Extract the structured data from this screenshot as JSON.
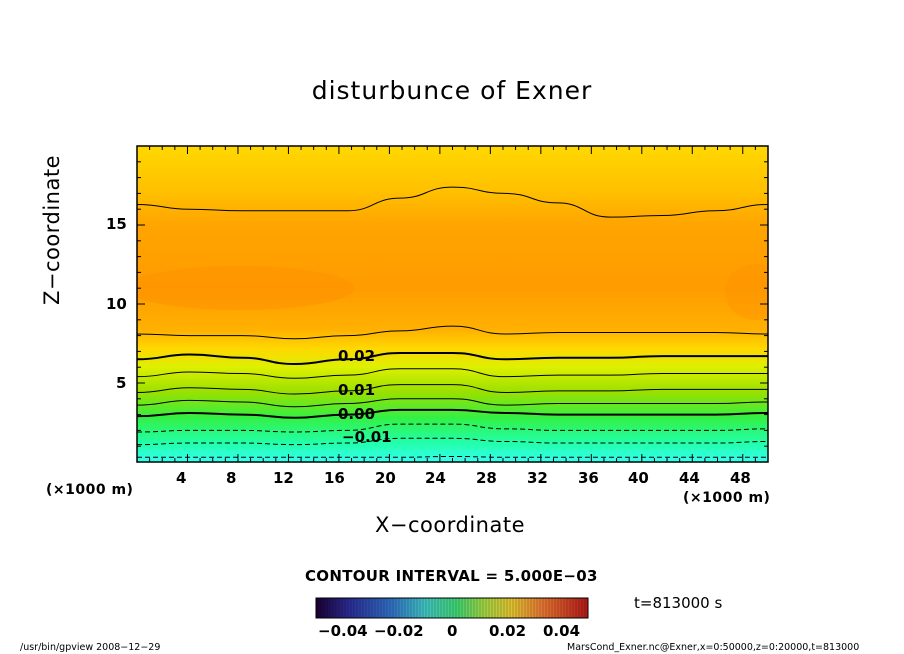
{
  "title": "disturbunce of Exner",
  "xlabel": "X−coordinate",
  "ylabel": "Z−coordinate",
  "x_unit": "(×1000 m)",
  "y_unit": "(×1000 m)",
  "contour_interval_text": "CONTOUR INTERVAL = 5.000E−03",
  "time_text": "t=813000 s",
  "footer_left": "/usr/bin/gpview   2008−12−29",
  "footer_right": "MarsCond_Exner.nc@Exner,x=0:50000,z=0:20000,t=813000",
  "chart_data": {
    "type": "heatmap",
    "title": "disturbunce of Exner",
    "xlabel": "X−coordinate",
    "ylabel": "Z−coordinate",
    "x_unit": "(×1000 m)",
    "y_unit": "(×1000 m)",
    "xlim": [
      0,
      50
    ],
    "ylim": [
      0,
      20
    ],
    "x_ticks": [
      "4",
      "8",
      "12",
      "16",
      "20",
      "24",
      "28",
      "32",
      "36",
      "40",
      "44",
      "48"
    ],
    "y_ticks": [
      "5",
      "10",
      "15"
    ],
    "contour_interval": 0.005,
    "contour_labels": [
      "0.02",
      "0.01",
      "0.00",
      "−0.01"
    ],
    "colorbar": {
      "min": -0.05,
      "max": 0.05,
      "ticks": [
        "−0.04",
        "−0.02",
        "0",
        "0.02",
        "0.04"
      ]
    },
    "contour_levels": [
      {
        "value": -0.015,
        "style": "dashed",
        "z": [
          0.3,
          0.3,
          0.3,
          0.3,
          0.3,
          0.3,
          0.35,
          0.3,
          0.3,
          0.3,
          0.3,
          0.3,
          0.3
        ]
      },
      {
        "value": -0.01,
        "style": "dashed",
        "z": [
          1.1,
          1.2,
          1.2,
          1.1,
          1.2,
          1.5,
          1.5,
          1.3,
          1.2,
          1.2,
          1.2,
          1.2,
          1.3
        ]
      },
      {
        "value": -0.005,
        "style": "dashed",
        "z": [
          1.9,
          2.0,
          2.0,
          1.9,
          2.0,
          2.4,
          2.4,
          2.1,
          2.0,
          2.0,
          2.0,
          2.0,
          2.1
        ]
      },
      {
        "value": 0.0,
        "style": "bold",
        "z": [
          2.9,
          3.1,
          3.0,
          2.8,
          3.0,
          3.3,
          3.3,
          3.1,
          3.0,
          3.0,
          3.0,
          3.0,
          3.1
        ]
      },
      {
        "value": 0.005,
        "style": "solid",
        "z": [
          3.6,
          3.9,
          3.8,
          3.5,
          3.7,
          4.0,
          4.0,
          3.6,
          3.7,
          3.7,
          3.7,
          3.7,
          3.8
        ]
      },
      {
        "value": 0.01,
        "style": "solid",
        "z": [
          4.4,
          4.7,
          4.6,
          4.3,
          4.5,
          4.9,
          4.9,
          4.4,
          4.5,
          4.5,
          4.6,
          4.6,
          4.6
        ]
      },
      {
        "value": 0.015,
        "style": "solid",
        "z": [
          5.4,
          5.7,
          5.6,
          5.3,
          5.5,
          5.9,
          5.9,
          5.4,
          5.5,
          5.5,
          5.6,
          5.6,
          5.6
        ]
      },
      {
        "value": 0.02,
        "style": "bold",
        "z": [
          6.5,
          6.8,
          6.6,
          6.2,
          6.5,
          6.9,
          6.9,
          6.5,
          6.6,
          6.6,
          6.7,
          6.7,
          6.7
        ]
      },
      {
        "value": 0.025,
        "style": "solid",
        "z": [
          8.1,
          8.0,
          8.0,
          7.8,
          8.0,
          8.3,
          8.6,
          8.1,
          8.2,
          8.2,
          8.2,
          8.2,
          8.1
        ]
      },
      {
        "value": 0.025,
        "style": "solid",
        "z": [
          16.3,
          16.0,
          15.9,
          15.9,
          15.9,
          16.7,
          17.4,
          17.0,
          16.4,
          15.5,
          15.6,
          15.9,
          16.3
        ]
      }
    ]
  }
}
